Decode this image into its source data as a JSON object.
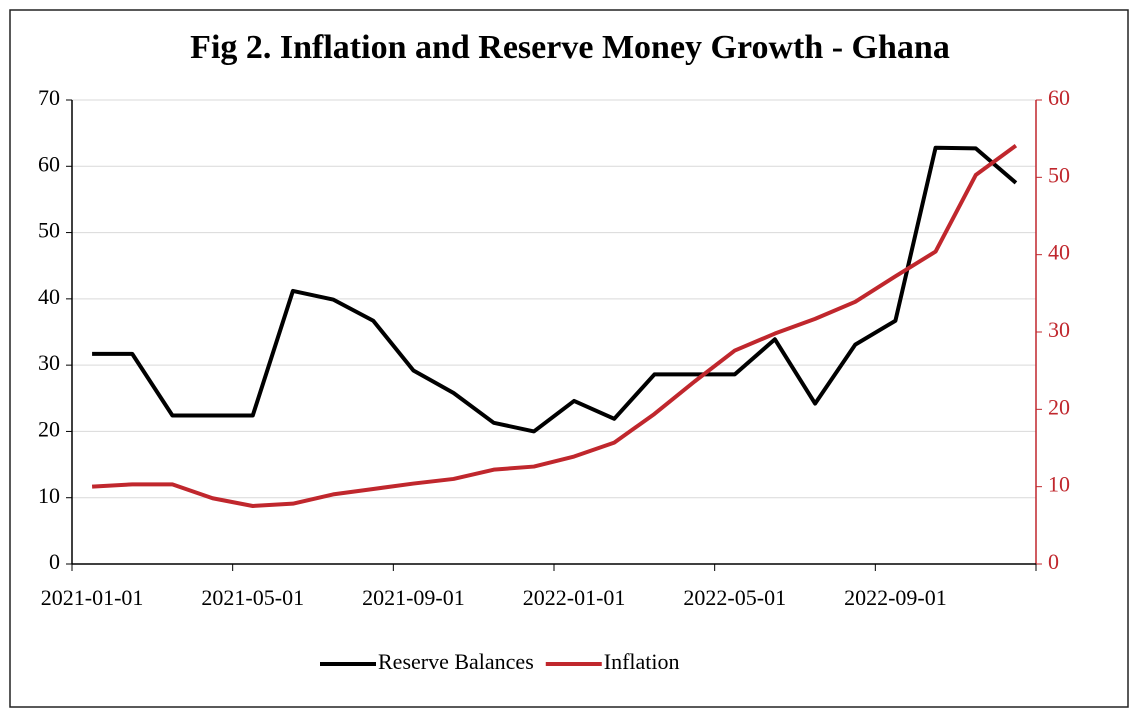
{
  "chart_data": {
    "type": "line",
    "title": "Fig 2. Inflation and Reserve Money Growth - Ghana",
    "categories": [
      "2021-01-01",
      null,
      null,
      null,
      "2021-05-01",
      null,
      null,
      null,
      "2021-09-01",
      null,
      null,
      null,
      "2022-01-01",
      null,
      null,
      null,
      "2022-05-01",
      null,
      null,
      null,
      "2022-09-01",
      null,
      null,
      null
    ],
    "series": [
      {
        "name": "Reserve Balances",
        "color": "#000000",
        "axis": "y",
        "values": [
          31.7,
          31.7,
          22.4,
          22.4,
          22.4,
          41.2,
          39.9,
          36.7,
          29.2,
          25.8,
          21.3,
          20.0,
          24.6,
          21.9,
          28.6,
          28.6,
          28.6,
          33.9,
          24.2,
          33.1,
          36.7,
          62.8,
          62.7,
          57.5
        ]
      },
      {
        "name": "Inflation",
        "color": "#c0272d",
        "axis": "y2",
        "values": [
          10.0,
          10.3,
          10.3,
          8.5,
          7.5,
          7.8,
          9.0,
          9.7,
          10.4,
          11.0,
          12.2,
          12.6,
          13.9,
          15.7,
          19.4,
          23.6,
          27.6,
          29.8,
          31.7,
          33.9,
          37.2,
          40.4,
          50.3,
          54.1
        ]
      }
    ],
    "ylim": [
      0,
      70
    ],
    "yticks": [
      0,
      10,
      20,
      30,
      40,
      50,
      60,
      70
    ],
    "y2lim": [
      0,
      60
    ],
    "y2ticks": [
      0,
      10,
      20,
      30,
      40,
      50,
      60
    ],
    "y2color": "#c0272d",
    "grid": true,
    "legend": "bottom"
  }
}
